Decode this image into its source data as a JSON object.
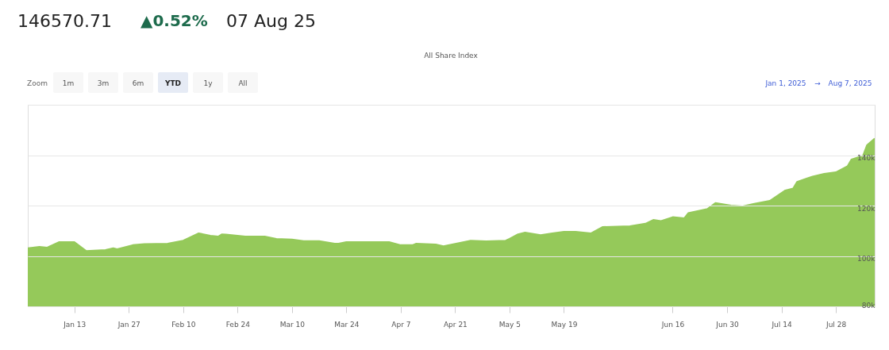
{
  "chart_data": {
    "type": "area",
    "title": "All Share Index",
    "annotations": [
      "146570.71",
      "▲0.52%",
      "07 Aug 25",
      "Zoom",
      "1m",
      "3m",
      "6m",
      "YTD",
      "1y",
      "All",
      "Jan 1, 2025",
      "→",
      "Aug 7, 2025"
    ],
    "x": [
      "2025-01-01",
      "2025-01-04",
      "2025-01-06",
      "2025-01-09",
      "2025-01-13",
      "2025-01-16",
      "2025-01-21",
      "2025-01-23",
      "2025-01-24",
      "2025-01-28",
      "2025-01-31",
      "2025-02-06",
      "2025-02-10",
      "2025-02-14",
      "2025-02-17",
      "2025-02-19",
      "2025-02-20",
      "2025-02-21",
      "2025-02-26",
      "2025-03-03",
      "2025-03-06",
      "2025-03-10",
      "2025-03-13",
      "2025-03-17",
      "2025-03-21",
      "2025-03-22",
      "2025-03-24",
      "2025-04-01",
      "2025-04-04",
      "2025-04-07",
      "2025-04-10",
      "2025-04-11",
      "2025-04-16",
      "2025-04-18",
      "2025-04-25",
      "2025-04-29",
      "2025-05-04",
      "2025-05-05",
      "2025-05-07",
      "2025-05-09",
      "2025-05-13",
      "2025-05-16",
      "2025-05-19",
      "2025-05-22",
      "2025-05-26",
      "2025-05-29",
      "2025-06-05",
      "2025-06-09",
      "2025-06-11",
      "2025-06-13",
      "2025-06-16",
      "2025-06-19",
      "2025-06-20",
      "2025-06-25",
      "2025-06-27",
      "2025-07-01",
      "2025-07-04",
      "2025-07-07",
      "2025-07-11",
      "2025-07-15",
      "2025-07-17",
      "2025-07-18",
      "2025-07-22",
      "2025-07-25",
      "2025-07-28",
      "2025-07-31",
      "2025-08-01",
      "2025-08-04",
      "2025-08-05",
      "2025-08-07"
    ],
    "series": [
      {
        "color": "#95c95a",
        "values": [
          103100,
          103600,
          103300,
          105500,
          105500,
          102000,
          102400,
          103100,
          102700,
          104300,
          104700,
          104900,
          106100,
          109000,
          108000,
          107700,
          108600,
          108500,
          107700,
          107700,
          106800,
          106500,
          105900,
          105900,
          104900,
          104900,
          105500,
          105500,
          105500,
          104300,
          104300,
          104900,
          104600,
          103900,
          106100,
          105800,
          106100,
          106800,
          108500,
          109300,
          108300,
          109000,
          109600,
          109600,
          109000,
          111500,
          111800,
          112800,
          114300,
          113900,
          115400,
          115000,
          117000,
          118700,
          121000,
          120000,
          119700,
          120700,
          121900,
          126000,
          126800,
          129400,
          131500,
          132600,
          133200,
          135600,
          138300,
          139800,
          143900,
          146600
        ]
      }
    ],
    "xlim": [
      "2025-01-01",
      "2025-08-07"
    ],
    "xticks": [
      {
        "value": "2025-01-13",
        "label": "Jan 13"
      },
      {
        "value": "2025-01-27",
        "label": "Jan 27"
      },
      {
        "value": "2025-02-10",
        "label": "Feb 10"
      },
      {
        "value": "2025-02-24",
        "label": "Feb 24"
      },
      {
        "value": "2025-03-10",
        "label": "Mar 10"
      },
      {
        "value": "2025-03-24",
        "label": "Mar 24"
      },
      {
        "value": "2025-04-07",
        "label": "Apr 7"
      },
      {
        "value": "2025-04-21",
        "label": "Apr 21"
      },
      {
        "value": "2025-05-05",
        "label": "May 5"
      },
      {
        "value": "2025-05-19",
        "label": "May 19"
      },
      {
        "value": "2025-06-16",
        "label": "Jun 16"
      },
      {
        "value": "2025-06-30",
        "label": "Jun 30"
      },
      {
        "value": "2025-07-14",
        "label": "Jul 14"
      },
      {
        "value": "2025-07-28",
        "label": "Jul 28"
      }
    ],
    "ylim": [
      80000,
      160000
    ],
    "yticks": [
      {
        "value": 80000,
        "label": "80k"
      },
      {
        "value": 100000,
        "label": "100k"
      },
      {
        "value": 120000,
        "label": "120k"
      },
      {
        "value": 140000,
        "label": "140k"
      },
      {
        "value": 160000,
        "label": null
      }
    ],
    "grid": "y"
  }
}
